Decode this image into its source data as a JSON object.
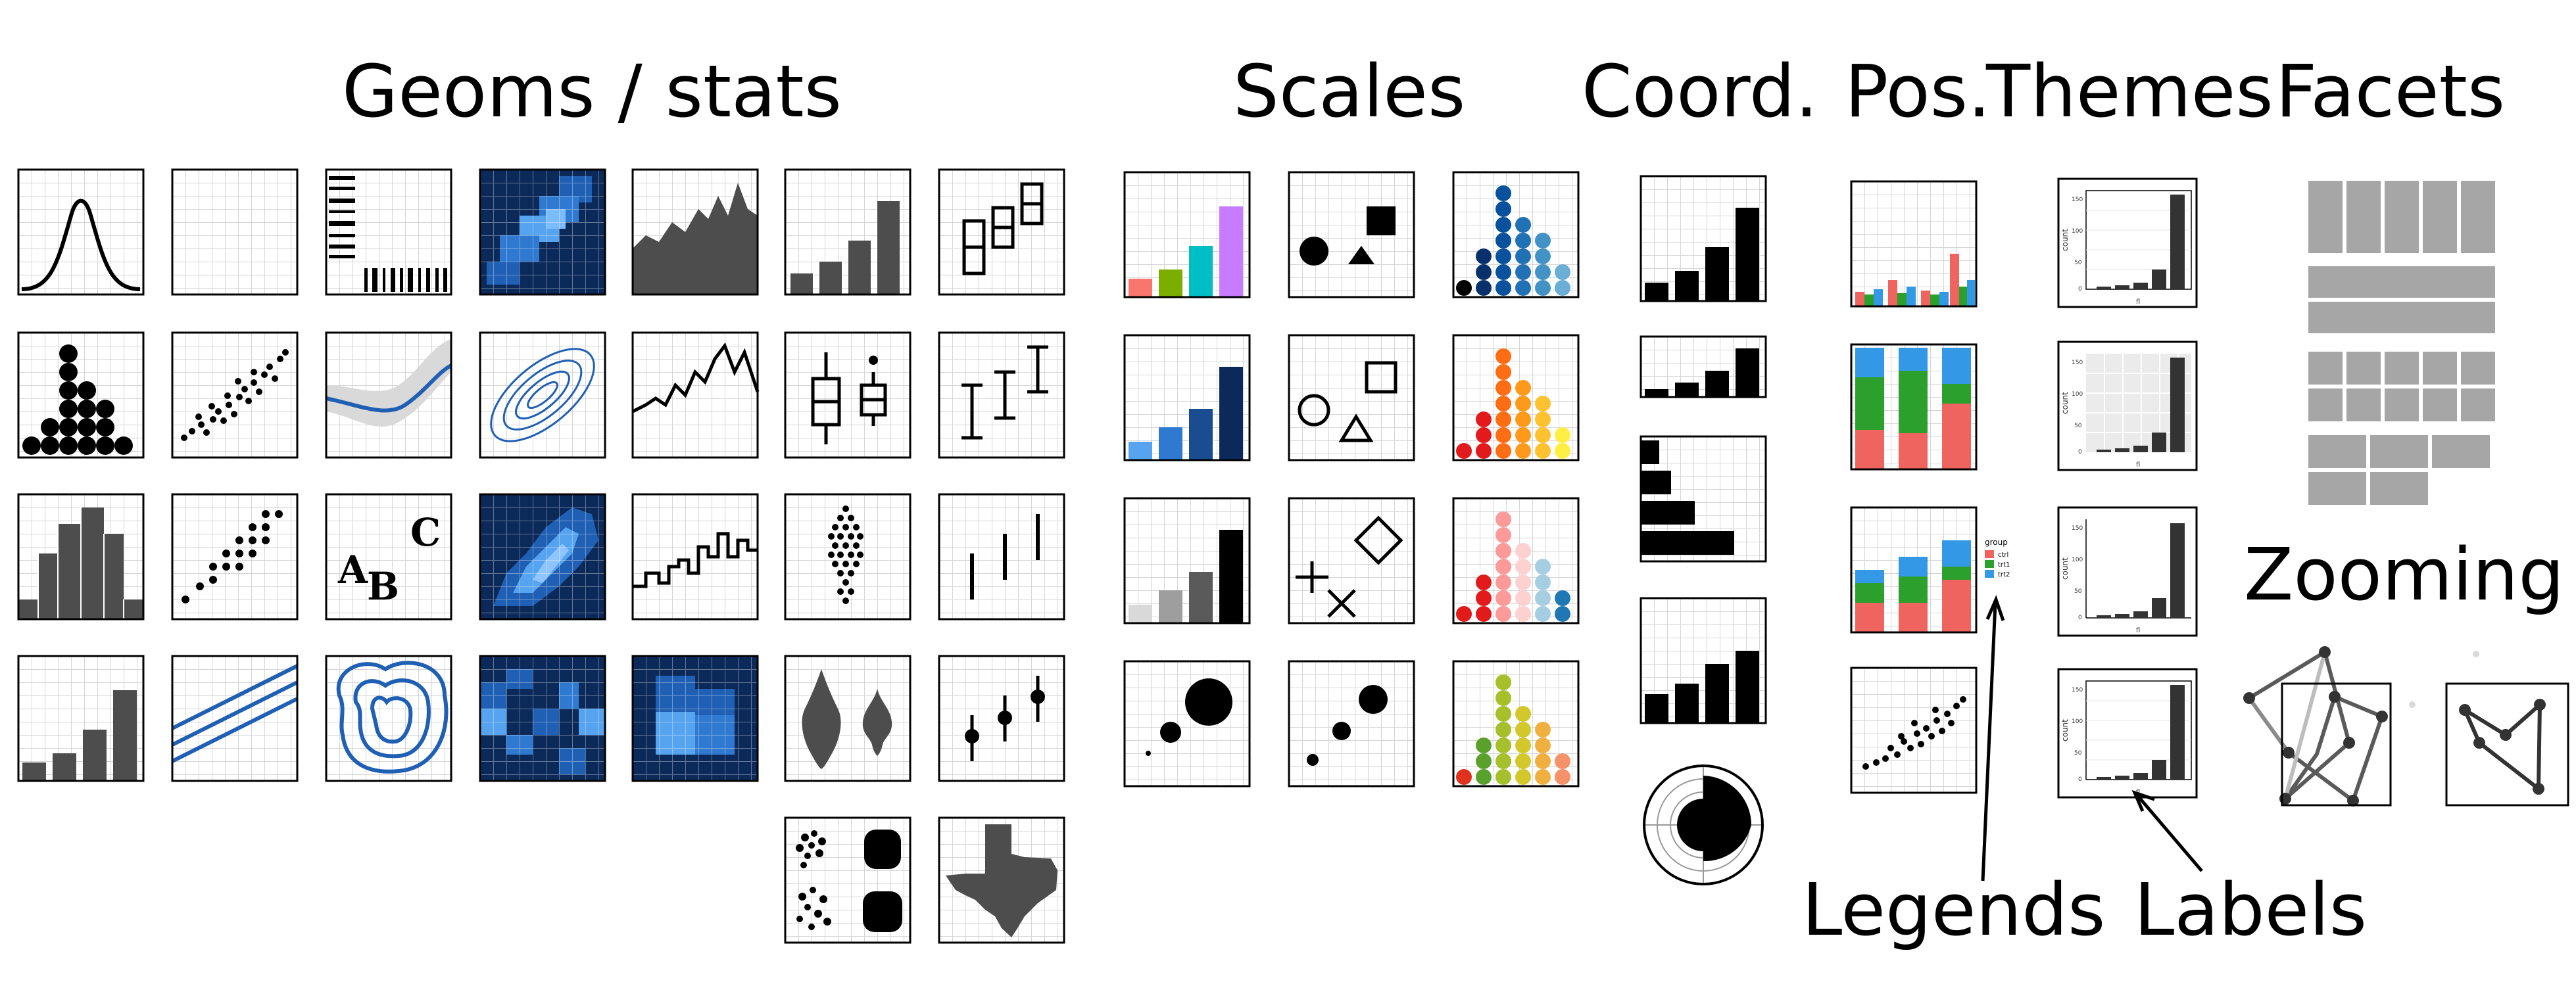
{
  "headings": {
    "geoms_stats": "Geoms / stats",
    "scales": "Scales",
    "coord": "Coord.",
    "pos": "Pos.",
    "themes": "Themes",
    "facets": "Facets",
    "zooming": "Zooming",
    "legends": "Legends",
    "labels": "Labels"
  },
  "tile_text": {
    "text_a": "A",
    "text_b": "B",
    "text_c": "C"
  },
  "legend_box": {
    "title": "group",
    "items": [
      "ctrl",
      "trt1",
      "trt2"
    ]
  },
  "theme_axis": {
    "ylabel": "count",
    "xlabel": "fl",
    "yticks": [
      "150",
      "100",
      "50",
      "0"
    ],
    "xticks": [
      "c",
      "d",
      "e",
      "p",
      "r"
    ]
  },
  "colors": {
    "grid": "#d6d6d6",
    "dark_fill": "#4d4d4d",
    "blue_dark": "#0b2a5a",
    "blue_mid": "#1f5fb4",
    "blue_light": "#56a3f0",
    "facet_gray": "#a6a6a6",
    "legend_red": "#f0645f",
    "legend_green": "#2ca02c",
    "legend_blue": "#3399e6"
  }
}
